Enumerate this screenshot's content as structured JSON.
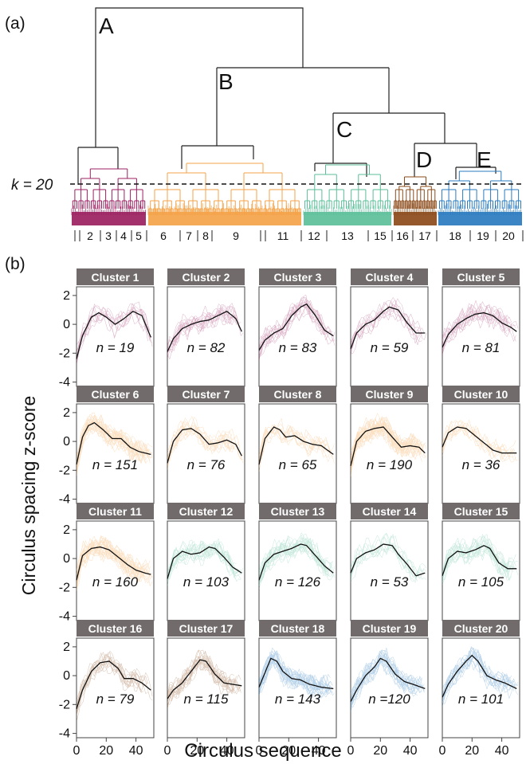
{
  "panel_a_label": "(a)",
  "panel_b_label": "(b)",
  "dendrogram": {
    "k_label": "k = 20",
    "branch_labels": [
      "A",
      "B",
      "C",
      "D",
      "E"
    ],
    "cluster_numbers": [
      "2",
      "3",
      "4",
      "5",
      "6",
      "7",
      "8",
      "9",
      "11",
      "12",
      "13",
      "15",
      "16",
      "17",
      "18",
      "19",
      "20"
    ],
    "colors": {
      "magenta": "#9b2060",
      "orange": "#f4a34a",
      "teal": "#5cbf9a",
      "brown": "#8b4a1a",
      "blue": "#2a7bbf",
      "black": "#222222"
    }
  },
  "chart_data": {
    "type": "line",
    "xlabel": "Circulus sequence",
    "ylabel": "Circulus spacing z-score",
    "xlim": [
      0,
      52
    ],
    "ylim": [
      -4.3,
      2.6
    ],
    "xticks": [
      0,
      20,
      40
    ],
    "yticks": [
      2,
      0,
      -2,
      -4
    ],
    "clusters": [
      {
        "title": "Cluster 1",
        "n_label": "n = 19",
        "n": 19,
        "color": "#9b2060",
        "curve": [
          [
            0,
            -2.4
          ],
          [
            4,
            -0.8
          ],
          [
            10,
            0.5
          ],
          [
            15,
            0.8
          ],
          [
            20,
            0.5
          ],
          [
            26,
            0.0
          ],
          [
            32,
            0.4
          ],
          [
            38,
            0.9
          ],
          [
            44,
            0.6
          ],
          [
            50,
            -0.9
          ]
        ]
      },
      {
        "title": "Cluster 2",
        "n_label": "n = 82",
        "n": 82,
        "color": "#9b2060",
        "curve": [
          [
            0,
            -1.9
          ],
          [
            4,
            -1.0
          ],
          [
            10,
            -0.3
          ],
          [
            16,
            0.0
          ],
          [
            22,
            0.2
          ],
          [
            28,
            0.3
          ],
          [
            34,
            0.6
          ],
          [
            40,
            0.9
          ],
          [
            46,
            0.4
          ],
          [
            50,
            -0.5
          ]
        ]
      },
      {
        "title": "Cluster 3",
        "n_label": "n = 83",
        "n": 83,
        "color": "#9b2060",
        "curve": [
          [
            0,
            -1.8
          ],
          [
            4,
            -1.1
          ],
          [
            10,
            -0.6
          ],
          [
            16,
            -0.3
          ],
          [
            22,
            0.6
          ],
          [
            28,
            1.2
          ],
          [
            32,
            1.4
          ],
          [
            38,
            0.6
          ],
          [
            44,
            -0.4
          ],
          [
            50,
            -0.8
          ]
        ]
      },
      {
        "title": "Cluster 4",
        "n_label": "n = 59",
        "n": 59,
        "color": "#9b2060",
        "curve": [
          [
            0,
            -1.7
          ],
          [
            4,
            -0.6
          ],
          [
            10,
            0.0
          ],
          [
            16,
            0.3
          ],
          [
            22,
            0.9
          ],
          [
            26,
            1.2
          ],
          [
            32,
            1.0
          ],
          [
            38,
            0.1
          ],
          [
            44,
            -0.6
          ],
          [
            50,
            -0.6
          ]
        ]
      },
      {
        "title": "Cluster 5",
        "n_label": "n = 81",
        "n": 81,
        "color": "#9b2060",
        "curve": [
          [
            0,
            -1.6
          ],
          [
            4,
            -0.7
          ],
          [
            10,
            0.0
          ],
          [
            16,
            0.4
          ],
          [
            22,
            0.7
          ],
          [
            28,
            0.8
          ],
          [
            34,
            0.6
          ],
          [
            40,
            0.1
          ],
          [
            46,
            -0.2
          ],
          [
            50,
            -0.5
          ]
        ]
      },
      {
        "title": "Cluster 6",
        "n_label": "n = 151",
        "n": 151,
        "color": "#f4a34a",
        "curve": [
          [
            0,
            -1.6
          ],
          [
            4,
            0.3
          ],
          [
            8,
            1.1
          ],
          [
            12,
            1.3
          ],
          [
            18,
            0.8
          ],
          [
            24,
            0.2
          ],
          [
            30,
            0.2
          ],
          [
            36,
            -0.4
          ],
          [
            42,
            -0.7
          ],
          [
            50,
            -0.9
          ]
        ]
      },
      {
        "title": "Cluster 7",
        "n_label": "n = 76",
        "n": 76,
        "color": "#f4a34a",
        "curve": [
          [
            0,
            -1.5
          ],
          [
            4,
            0.0
          ],
          [
            10,
            0.8
          ],
          [
            16,
            0.9
          ],
          [
            22,
            0.5
          ],
          [
            28,
            -0.2
          ],
          [
            34,
            -0.1
          ],
          [
            40,
            0.1
          ],
          [
            46,
            -0.2
          ],
          [
            50,
            -1.0
          ]
        ]
      },
      {
        "title": "Cluster 8",
        "n_label": "n = 65",
        "n": 65,
        "color": "#f4a34a",
        "curve": [
          [
            0,
            -1.6
          ],
          [
            4,
            0.2
          ],
          [
            10,
            1.0
          ],
          [
            14,
            0.8
          ],
          [
            18,
            0.3
          ],
          [
            24,
            0.4
          ],
          [
            30,
            0.0
          ],
          [
            36,
            -0.2
          ],
          [
            42,
            -0.3
          ],
          [
            50,
            -0.9
          ]
        ]
      },
      {
        "title": "Cluster 9",
        "n_label": "n = 190",
        "n": 190,
        "color": "#f4a34a",
        "curve": [
          [
            0,
            -1.7
          ],
          [
            4,
            0.0
          ],
          [
            10,
            0.7
          ],
          [
            16,
            0.9
          ],
          [
            22,
            1.0
          ],
          [
            28,
            0.3
          ],
          [
            34,
            -0.4
          ],
          [
            40,
            -0.3
          ],
          [
            46,
            -0.4
          ],
          [
            50,
            -0.8
          ]
        ]
      },
      {
        "title": "Cluster 10",
        "n_label": "n = 36",
        "n": 36,
        "color": "#f4a34a",
        "curve": [
          [
            0,
            -0.4
          ],
          [
            4,
            0.6
          ],
          [
            10,
            1.0
          ],
          [
            16,
            0.9
          ],
          [
            22,
            0.4
          ],
          [
            28,
            -0.1
          ],
          [
            34,
            -0.6
          ],
          [
            40,
            -0.8
          ],
          [
            46,
            -0.8
          ],
          [
            50,
            -0.8
          ]
        ]
      },
      {
        "title": "Cluster 11",
        "n_label": "n = 160",
        "n": 160,
        "color": "#f4a34a",
        "curve": [
          [
            0,
            -1.5
          ],
          [
            4,
            0.2
          ],
          [
            10,
            0.7
          ],
          [
            16,
            0.8
          ],
          [
            22,
            0.6
          ],
          [
            28,
            0.1
          ],
          [
            34,
            -0.4
          ],
          [
            40,
            -0.8
          ],
          [
            46,
            -1.0
          ],
          [
            50,
            -1.1
          ]
        ]
      },
      {
        "title": "Cluster 12",
        "n_label": "n = 103",
        "n": 103,
        "color": "#5cbf9a",
        "curve": [
          [
            0,
            -1.4
          ],
          [
            4,
            0.0
          ],
          [
            10,
            0.5
          ],
          [
            16,
            0.3
          ],
          [
            22,
            0.4
          ],
          [
            28,
            0.8
          ],
          [
            32,
            0.7
          ],
          [
            38,
            0.1
          ],
          [
            44,
            -0.6
          ],
          [
            50,
            -1.0
          ]
        ]
      },
      {
        "title": "Cluster 13",
        "n_label": "n = 126",
        "n": 126,
        "color": "#5cbf9a",
        "curve": [
          [
            0,
            -1.5
          ],
          [
            4,
            -0.3
          ],
          [
            10,
            0.3
          ],
          [
            16,
            0.5
          ],
          [
            22,
            0.7
          ],
          [
            28,
            1.0
          ],
          [
            32,
            0.9
          ],
          [
            38,
            0.2
          ],
          [
            44,
            -0.5
          ],
          [
            50,
            -1.0
          ]
        ]
      },
      {
        "title": "Cluster 14",
        "n_label": "n = 53",
        "n": 53,
        "color": "#5cbf9a",
        "curve": [
          [
            0,
            -1.0
          ],
          [
            4,
            0.0
          ],
          [
            10,
            0.4
          ],
          [
            16,
            0.6
          ],
          [
            22,
            1.0
          ],
          [
            28,
            0.9
          ],
          [
            32,
            0.3
          ],
          [
            38,
            -0.4
          ],
          [
            44,
            -1.2
          ],
          [
            50,
            -1.0
          ]
        ]
      },
      {
        "title": "Cluster 15",
        "n_label": "n = 105",
        "n": 105,
        "color": "#5cbf9a",
        "curve": [
          [
            0,
            -1.2
          ],
          [
            4,
            0.0
          ],
          [
            10,
            0.5
          ],
          [
            16,
            0.4
          ],
          [
            22,
            0.6
          ],
          [
            28,
            0.9
          ],
          [
            32,
            0.7
          ],
          [
            38,
            -0.3
          ],
          [
            44,
            -0.7
          ],
          [
            50,
            -0.7
          ]
        ]
      },
      {
        "title": "Cluster 16",
        "n_label": "n = 79",
        "n": 79,
        "color": "#8b4a1a",
        "curve": [
          [
            0,
            -2.3
          ],
          [
            4,
            -1.0
          ],
          [
            10,
            0.3
          ],
          [
            16,
            0.9
          ],
          [
            22,
            1.0
          ],
          [
            28,
            0.5
          ],
          [
            32,
            -0.2
          ],
          [
            38,
            -0.2
          ],
          [
            44,
            -0.5
          ],
          [
            50,
            -1.0
          ]
        ]
      },
      {
        "title": "Cluster 17",
        "n_label": "n = 115",
        "n": 115,
        "color": "#8b4a1a",
        "curve": [
          [
            0,
            -1.6
          ],
          [
            4,
            -1.0
          ],
          [
            10,
            -0.5
          ],
          [
            16,
            0.3
          ],
          [
            22,
            1.1
          ],
          [
            26,
            1.0
          ],
          [
            32,
            0.1
          ],
          [
            38,
            -0.5
          ],
          [
            44,
            -0.6
          ],
          [
            50,
            -0.7
          ]
        ]
      },
      {
        "title": "Cluster 18",
        "n_label": "n = 143",
        "n": 143,
        "color": "#2a7bbf",
        "curve": [
          [
            0,
            -0.8
          ],
          [
            4,
            0.2
          ],
          [
            8,
            1.2
          ],
          [
            12,
            1.0
          ],
          [
            16,
            0.3
          ],
          [
            22,
            -0.2
          ],
          [
            28,
            -0.3
          ],
          [
            34,
            -0.6
          ],
          [
            42,
            -0.8
          ],
          [
            50,
            -0.9
          ]
        ]
      },
      {
        "title": "Cluster 19",
        "n_label": "n =120",
        "n": 120,
        "color": "#2a7bbf",
        "curve": [
          [
            0,
            -1.8
          ],
          [
            4,
            -1.0
          ],
          [
            10,
            0.0
          ],
          [
            16,
            0.6
          ],
          [
            20,
            1.2
          ],
          [
            24,
            1.0
          ],
          [
            30,
            0.1
          ],
          [
            36,
            -0.4
          ],
          [
            42,
            -0.6
          ],
          [
            50,
            -0.9
          ]
        ]
      },
      {
        "title": "Cluster 20",
        "n_label": "n = 101",
        "n": 101,
        "color": "#2a7bbf",
        "curve": [
          [
            0,
            -1.5
          ],
          [
            4,
            -0.6
          ],
          [
            10,
            0.3
          ],
          [
            16,
            1.0
          ],
          [
            20,
            1.4
          ],
          [
            24,
            1.0
          ],
          [
            30,
            0.0
          ],
          [
            36,
            -0.3
          ],
          [
            42,
            -0.5
          ],
          [
            50,
            -0.9
          ]
        ]
      }
    ]
  }
}
